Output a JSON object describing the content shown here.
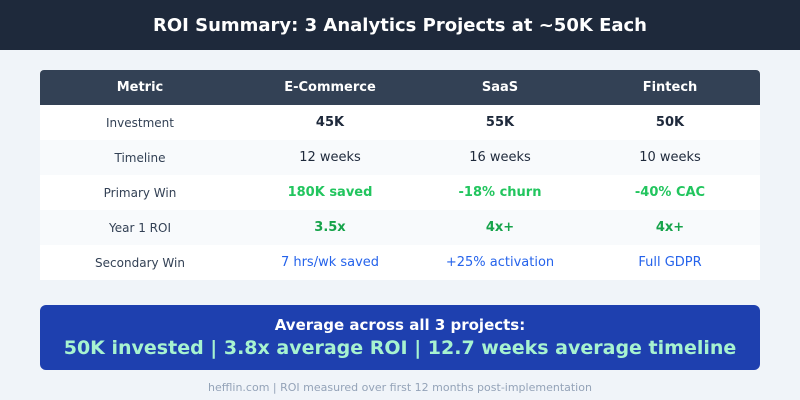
{
  "title": "ROI Summary: 3 Analytics Projects at ~50K Each",
  "table": {
    "headers": [
      "Metric",
      "E-Commerce",
      "SaaS",
      "Fintech"
    ],
    "rows": [
      {
        "metric": "Investment",
        "values": [
          "45K",
          "55K",
          "50K"
        ]
      },
      {
        "metric": "Timeline",
        "values": [
          "12 weeks",
          "16 weeks",
          "10 weeks"
        ]
      },
      {
        "metric": "Primary Win",
        "values": [
          "180K saved",
          "-18% churn",
          "-40% CAC"
        ]
      },
      {
        "metric": "Year 1 ROI",
        "values": [
          "3.5x",
          "4x+",
          "4x+"
        ]
      },
      {
        "metric": "Secondary Win",
        "values": [
          "7 hrs/wk saved",
          "+25% activation",
          "Full GDPR"
        ]
      }
    ]
  },
  "summary": {
    "heading": "Average across all 3 projects:",
    "detail": "50K invested | 3.8x average ROI | 12.7 weeks average timeline"
  },
  "footer": "hefflin.com | ROI measured over first 12 months post-implementation",
  "colors": {
    "header": "#1e293b",
    "table_header": "#334155",
    "banner": "#1e40af",
    "positive": "#22c55e",
    "link": "#2563eb",
    "highlight": "#a7f3d0"
  }
}
